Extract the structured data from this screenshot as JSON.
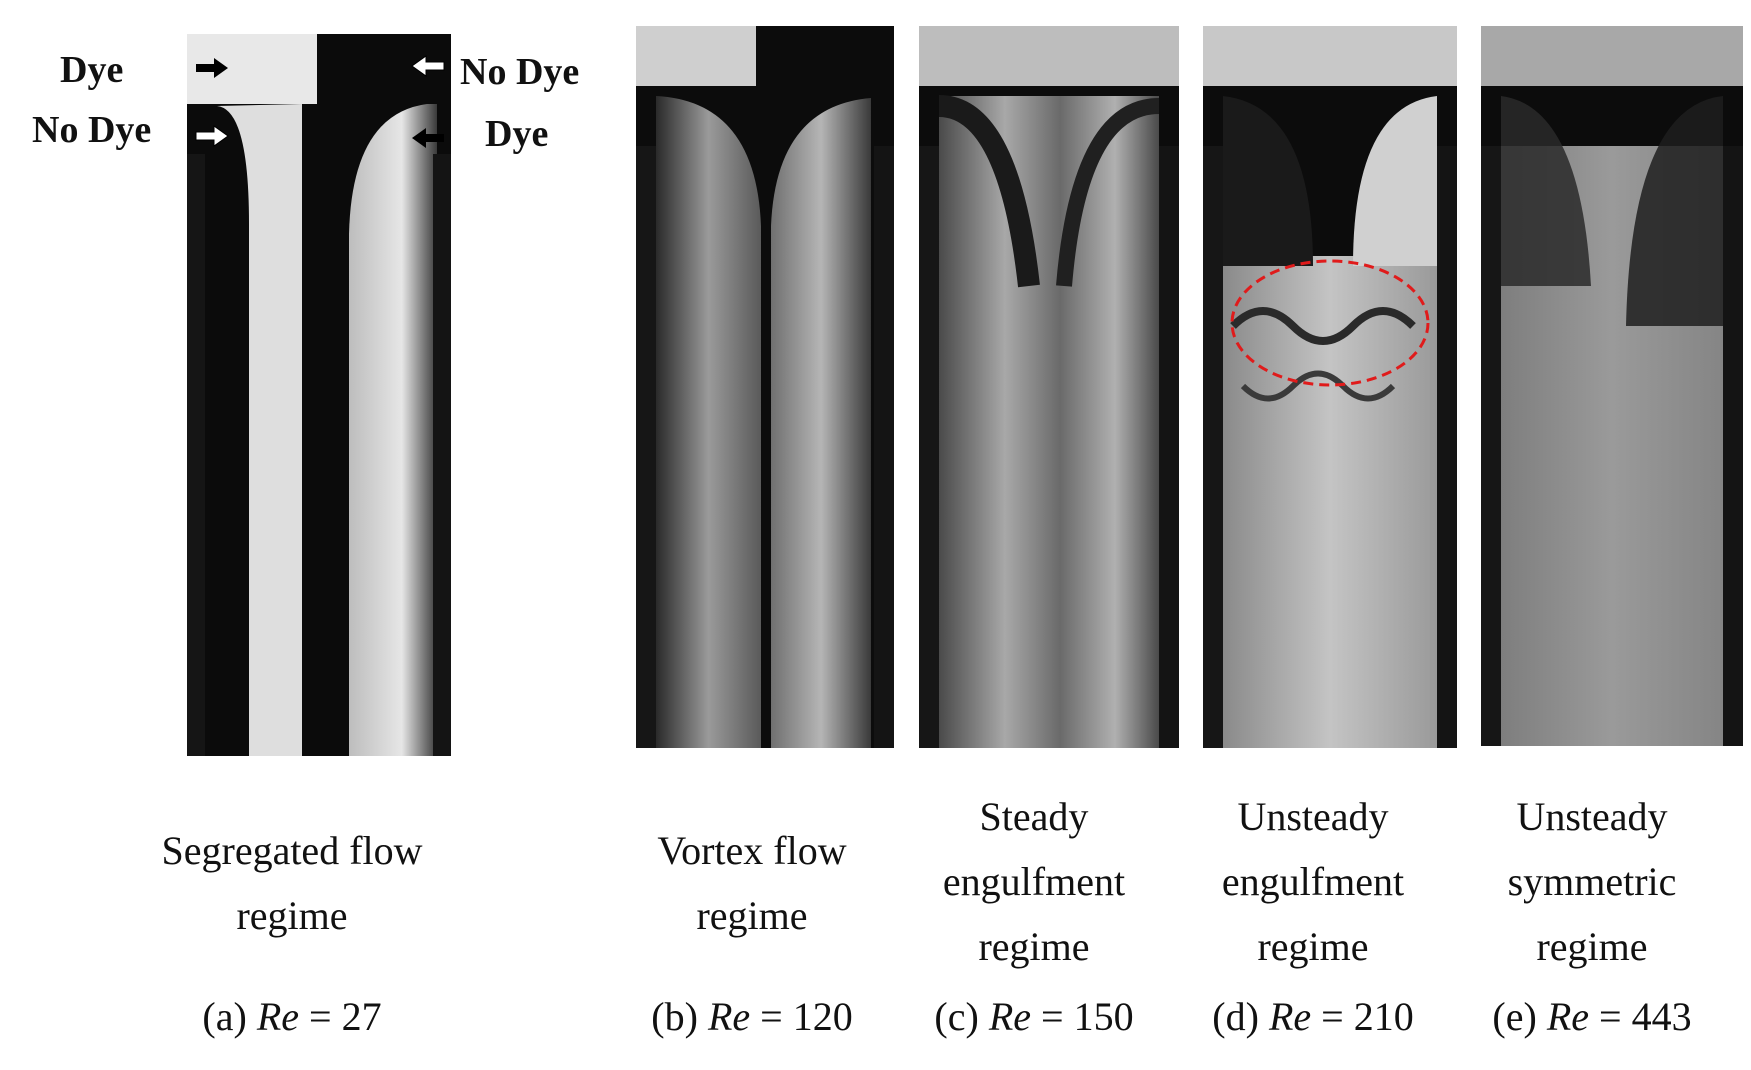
{
  "annotations": {
    "left_top": "Dye",
    "left_bottom": "No Dye",
    "right_top": "No Dye",
    "right_bottom": "Dye"
  },
  "panels": [
    {
      "id": "a",
      "regime_lines": [
        "Segregated flow",
        "regime"
      ],
      "prefix": "(a) ",
      "var": "Re",
      "value": " = 27"
    },
    {
      "id": "b",
      "regime_lines": [
        "Vortex flow",
        "regime"
      ],
      "prefix": "(b) ",
      "var": "Re",
      "value": " = 120"
    },
    {
      "id": "c",
      "regime_lines": [
        "Steady",
        "engulfment",
        "regime"
      ],
      "prefix": "(c) ",
      "var": "Re",
      "value": " = 150"
    },
    {
      "id": "d",
      "regime_lines": [
        "Unsteady",
        "engulfment",
        "regime"
      ],
      "prefix": "(d) ",
      "var": "Re",
      "value": " = 210"
    },
    {
      "id": "e",
      "regime_lines": [
        "Unsteady",
        "symmetric",
        "regime"
      ],
      "prefix": "(e) ",
      "var": "Re",
      "value": " = 443"
    }
  ],
  "colors": {
    "highlight": "#e01b1b",
    "dark": "#0a0a0a",
    "light": "#d8d8d8"
  }
}
